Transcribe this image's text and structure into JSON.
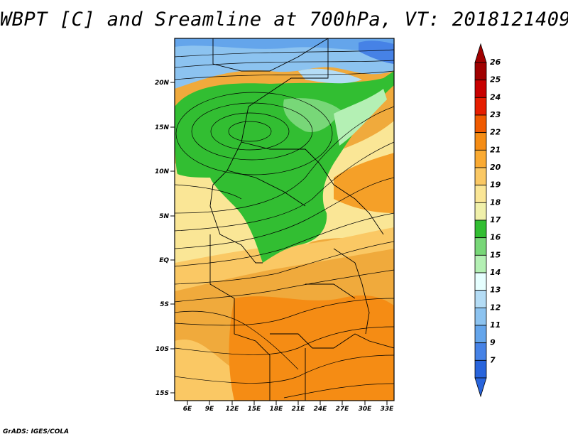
{
  "title": "WBPT [C] and Sreamline at 700hPa, VT: 2018121409",
  "footer": "GrADS: IGES/COLA",
  "map": {
    "lat_ticks": [
      "20N",
      "15N",
      "10N",
      "5N",
      "EQ",
      "5S",
      "10S",
      "15S"
    ],
    "lon_ticks": [
      "6E",
      "9E",
      "12E",
      "15E",
      "18E",
      "21E",
      "24E",
      "27E",
      "30E",
      "33E"
    ]
  },
  "colorbar": {
    "levels": [
      "26",
      "25",
      "24",
      "23",
      "22",
      "21",
      "20",
      "19",
      "18",
      "17",
      "16",
      "15",
      "14",
      "13",
      "12",
      "11",
      "9",
      "7"
    ],
    "colors": [
      "#a00000",
      "#c80000",
      "#e61e00",
      "#f05a00",
      "#f58c14",
      "#faaa32",
      "#fac864",
      "#fae696",
      "#f0f0aa",
      "#32be32",
      "#78d778",
      "#b4f0b4",
      "#e6ffff",
      "#b4dcf5",
      "#8cc3f0",
      "#64a5eb",
      "#4682e6",
      "#2864dc"
    ]
  }
}
